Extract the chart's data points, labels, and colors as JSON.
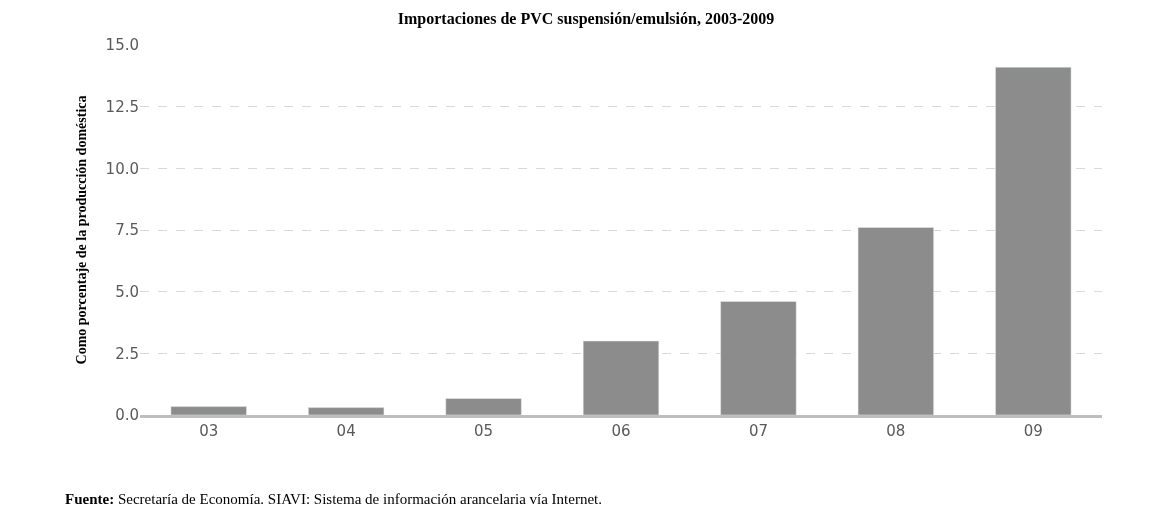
{
  "chart_data": {
    "type": "bar",
    "title": "Importaciones de PVC suspensión/emulsión, 2003-2009",
    "ylabel": "Como porcentaje de la producción doméstica",
    "categories": [
      "03",
      "04",
      "05",
      "06",
      "07",
      "08",
      "09"
    ],
    "values": [
      0.34,
      0.3,
      0.67,
      3.0,
      4.6,
      7.6,
      14.1
    ],
    "color": "#8c8c8c",
    "ylim": [
      0,
      15
    ],
    "yticks": [
      {
        "value": 0,
        "label": "0.0"
      },
      {
        "value": 2.5,
        "label": "2.5"
      },
      {
        "value": 5,
        "label": "5.0"
      },
      {
        "value": 7.5,
        "label": "7.5"
      },
      {
        "value": 10,
        "label": "10.0"
      },
      {
        "value": 12.5,
        "label": "12.5"
      },
      {
        "value": 15,
        "label": "15.0"
      }
    ],
    "grid": "y",
    "annotations": [
      "Fuente: Secretaría de Economía. SIAVI: Sistema de información arancelaria vía Internet."
    ]
  }
}
